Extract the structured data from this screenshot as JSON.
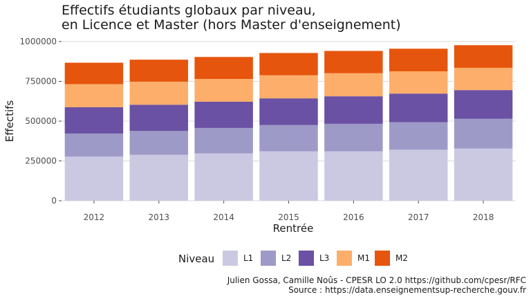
{
  "chart_data": {
    "type": "bar",
    "stacked": true,
    "title_line1": "Effectifs étudiants globaux par niveau,",
    "title_line2": "en Licence et Master (hors Master d'enseignement)",
    "xlabel": "Rentrée",
    "ylabel": "Effectifs",
    "ylim": [
      0,
      1000000
    ],
    "yticks": [
      0,
      250000,
      500000,
      750000,
      1000000
    ],
    "ytick_labels": [
      "0",
      "250000",
      "500000",
      "750000",
      "1000000"
    ],
    "grid": true,
    "legend_position": "bottom",
    "legend_title": "Niveau",
    "categories": [
      "2012",
      "2013",
      "2014",
      "2015",
      "2016",
      "2017",
      "2018"
    ],
    "series": [
      {
        "name": "L1",
        "color": "#cbc9e2",
        "values": [
          277000,
          288000,
          297000,
          310000,
          310000,
          320000,
          328000
        ]
      },
      {
        "name": "L2",
        "color": "#9e9ac8",
        "values": [
          145000,
          150000,
          160000,
          165000,
          173000,
          173000,
          187000
        ]
      },
      {
        "name": "L3",
        "color": "#6a51a3",
        "values": [
          165000,
          165000,
          165000,
          168000,
          173000,
          180000,
          180000
        ]
      },
      {
        "name": "M1",
        "color": "#fdae6b",
        "values": [
          145000,
          145000,
          143000,
          145000,
          145000,
          140000,
          140000
        ]
      },
      {
        "name": "M2",
        "color": "#e6550d",
        "values": [
          135000,
          138000,
          138000,
          140000,
          140000,
          142000,
          142000
        ]
      }
    ],
    "caption_line1": "Julien Gossa, Camille Noûs - CPESR LO 2.0 https://github.com/cpesr/RFC",
    "caption_line2": "Source : https://data.enseignementsup-recherche.gouv.fr"
  }
}
